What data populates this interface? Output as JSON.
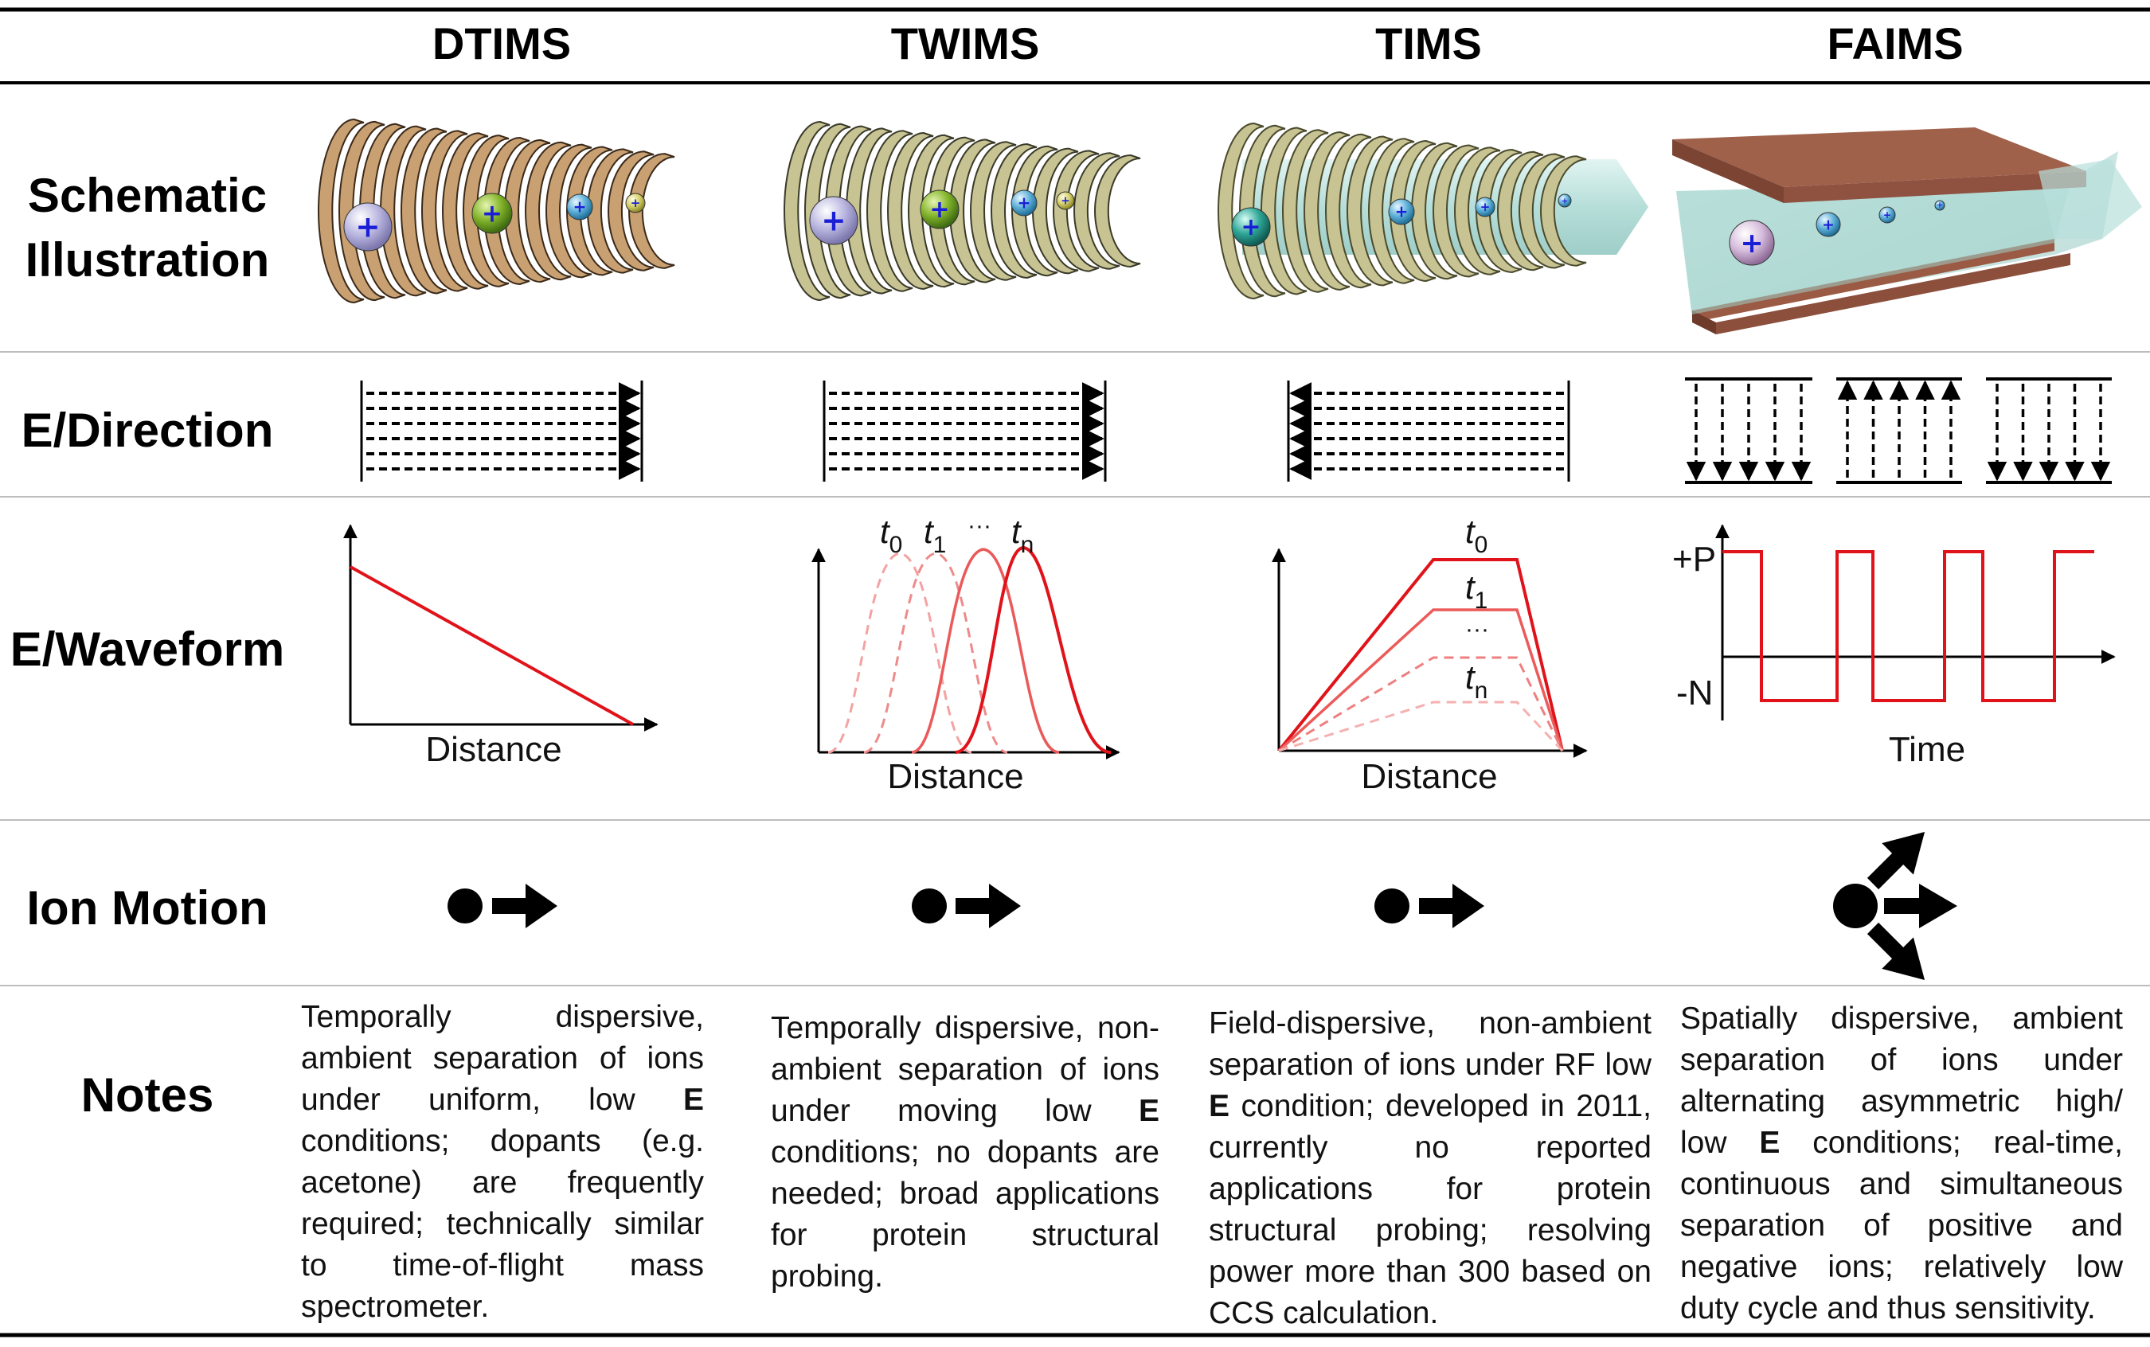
{
  "columns": {
    "dtims": "DTIMS",
    "twims": "TWIMS",
    "tims": "TIMS",
    "faims": "FAIMS"
  },
  "rows": {
    "schematic_line1": "Schematic",
    "schematic_line2": "Illustration",
    "direction": "E/Direction",
    "waveform": "E/Waveform",
    "motion": "Ion Motion",
    "notes": "Notes"
  },
  "waveform_labels": {
    "dtims_x": "Distance",
    "twims_x": "Distance",
    "tims_x": "Distance",
    "faims_x": "Time",
    "faims_pos": "+P",
    "faims_neg": "-N",
    "twims_t0": "t",
    "twims_t0_sub": "0",
    "twims_t1": "t",
    "twims_t1_sub": "1",
    "twims_dots": "···",
    "twims_tn": "t",
    "twims_tn_sub": "n",
    "tims_t0": "t",
    "tims_t0_sub": "0",
    "tims_t1": "t",
    "tims_t1_sub": "1",
    "tims_dots": "···",
    "tims_tn": "t",
    "tims_tn_sub": "n"
  },
  "ion_symbol": "+",
  "notes": {
    "dtims_a": "Temporally dispersive, ambient separation of ions under uniform, low ",
    "dtims_bold": "E",
    "dtims_b": " conditions; dopants (e.g. acetone) are frequently required; technically similar to time-of-flight mass spectrometer.",
    "twims_a": "Temporally dispersive, non-ambient separation of ions under moving low ",
    "twims_bold": "E",
    "twims_b": " conditions; no dopants are needed; broad applications for protein structural probing.",
    "tims_a": "Field-dispersive, non-ambient separation of ions under RF low ",
    "tims_bold": "E",
    "tims_b": " condition; developed in 2011, currently no reported applications for protein structural probing; resolving power more than 300 based on CCS calculation.",
    "faims_a": "Spatially dispersive, ambient separation of ions under alternating asymmetric high/ low ",
    "faims_bold": "E",
    "faims_b": " conditions; real-time, continuous and simultaneous separation of positive and negative ions; relatively low duty cycle and thus sensitivity."
  },
  "colors": {
    "waveform_red": "#e0131a",
    "plate_brown": "#8b4f3c",
    "ring_tan": "#c9a071",
    "ring_olive": "#c7c392",
    "gas_cyan": "#a9dcd6"
  }
}
